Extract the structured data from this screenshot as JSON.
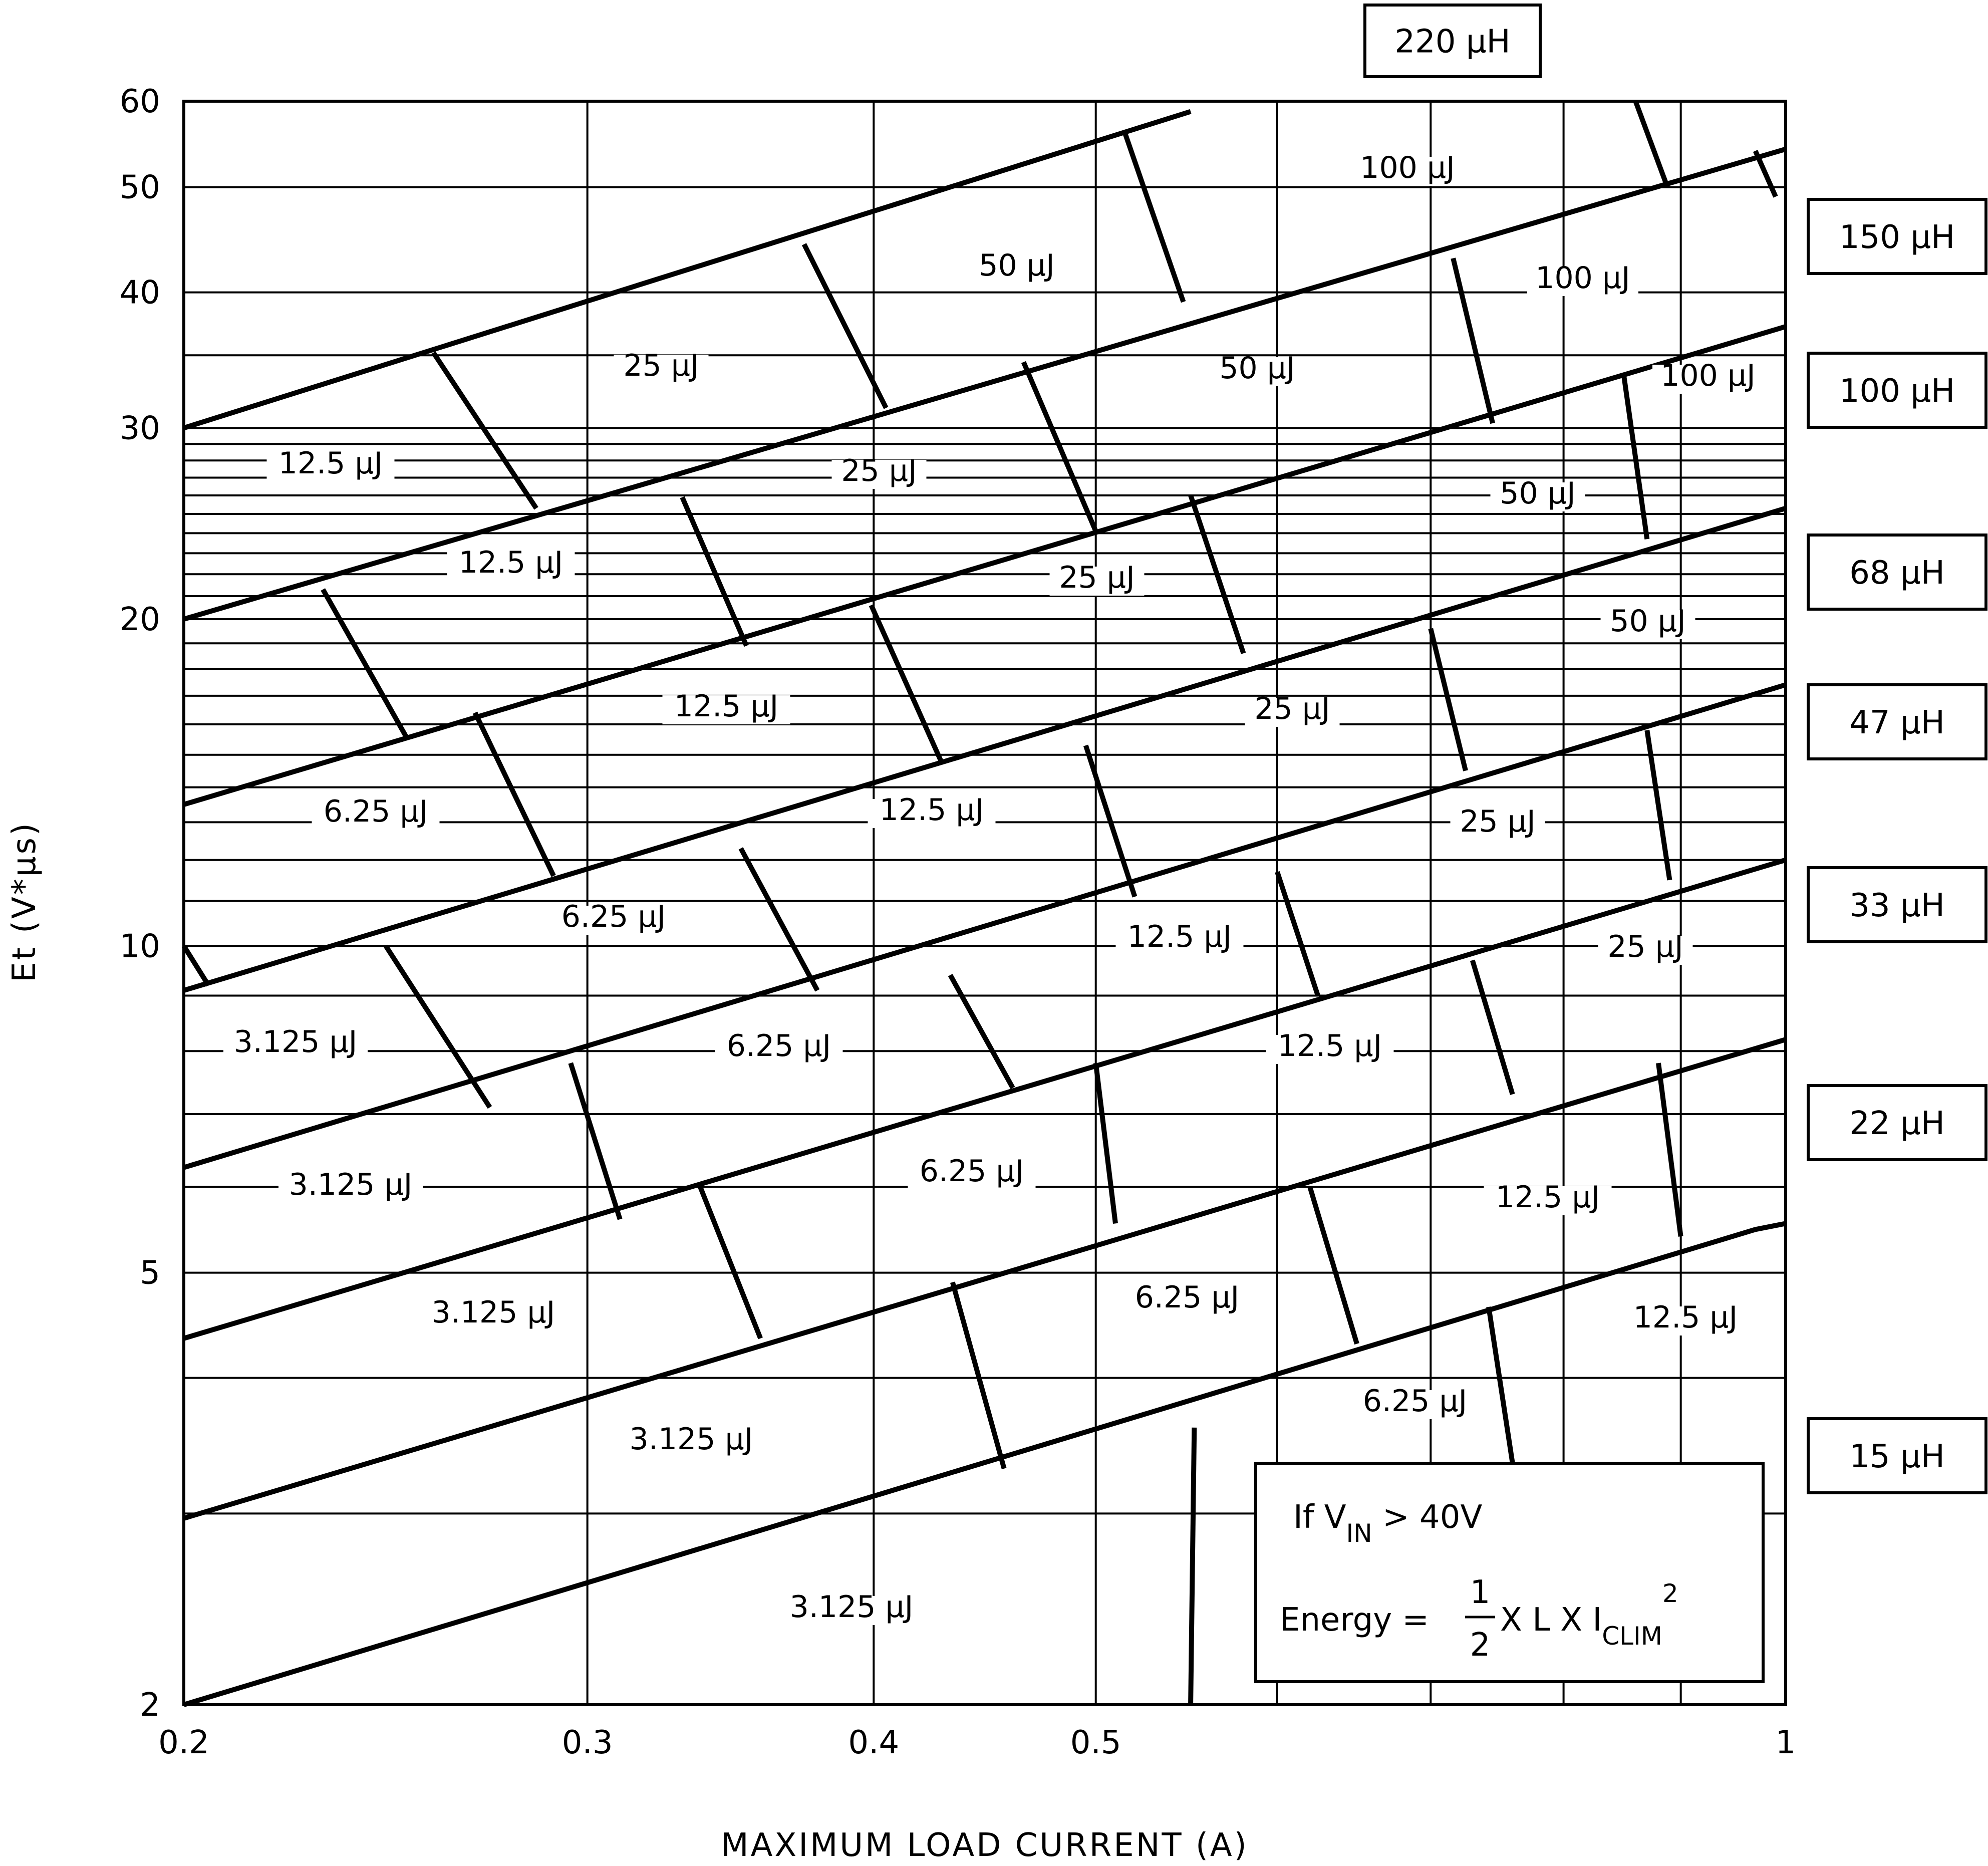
{
  "chart_data": {
    "type": "line",
    "title": "",
    "xlabel": "MAXIMUM LOAD CURRENT (A)",
    "ylabel": "Et (V*μs)",
    "x_scale": "log",
    "y_scale": "log",
    "xlim": [
      0.2,
      1
    ],
    "ylim": [
      2,
      60
    ],
    "grid": true,
    "x_ticks": [
      {
        "value": 0.2,
        "label": "0.2"
      },
      {
        "value": 0.3,
        "label": "0.3"
      },
      {
        "value": 0.4,
        "label": "0.4"
      },
      {
        "value": 0.5,
        "label": "0.5"
      },
      {
        "value": 1,
        "label": "1"
      }
    ],
    "x_minor_grid": [
      0.3,
      0.4,
      0.5,
      0.6,
      0.7,
      0.8,
      0.9
    ],
    "y_ticks": [
      {
        "value": 2,
        "label": "2"
      },
      {
        "value": 5,
        "label": "5"
      },
      {
        "value": 10,
        "label": "10"
      },
      {
        "value": 20,
        "label": "20"
      },
      {
        "value": 30,
        "label": "30"
      },
      {
        "value": 40,
        "label": "40"
      },
      {
        "value": 50,
        "label": "50"
      },
      {
        "value": 60,
        "label": "60"
      }
    ],
    "y_minor_grid": [
      3,
      4,
      6,
      7,
      8,
      9,
      11,
      12,
      13,
      14,
      15,
      16,
      17,
      18,
      19,
      21,
      22,
      23,
      24,
      25,
      26,
      27,
      28,
      29,
      35
    ],
    "inductor_lines": [
      {
        "label": "220 μH",
        "points": [
          [
            0.2,
            30
          ],
          [
            0.55,
            58.7
          ]
        ]
      },
      {
        "label": "150 μH",
        "points": [
          [
            0.2,
            20
          ],
          [
            1.0,
            54.2
          ]
        ]
      },
      {
        "label": "100 μH",
        "points": [
          [
            0.2,
            13.5
          ],
          [
            1.0,
            37.2
          ]
        ]
      },
      {
        "label": "68 μH",
        "points": [
          [
            0.2,
            9.1
          ],
          [
            1.0,
            25.3
          ]
        ]
      },
      {
        "label": "47 μH",
        "points": [
          [
            0.2,
            6.25
          ],
          [
            1.0,
            17.4
          ]
        ]
      },
      {
        "label": "33 μH",
        "points": [
          [
            0.2,
            4.35
          ],
          [
            1.0,
            12.0
          ]
        ]
      },
      {
        "label": "22 μH",
        "points": [
          [
            0.2,
            2.97
          ],
          [
            1.0,
            8.2
          ]
        ]
      },
      {
        "label": "15 μH",
        "points": [
          [
            0.2,
            2.0
          ],
          [
            0.97,
            5.48
          ],
          [
            1.0,
            5.55
          ]
        ]
      }
    ],
    "energy_lines": [
      {
        "points": [
          [
            0.2,
            10.0
          ],
          [
            0.205,
            9.2
          ]
        ]
      },
      {
        "points": [
          [
            0.245,
            10.0
          ],
          [
            0.272,
            7.1
          ]
        ]
      },
      {
        "points": [
          [
            0.257,
            35.2
          ],
          [
            0.285,
            25.3
          ]
        ]
      },
      {
        "points": [
          [
            0.23,
            21.3
          ],
          [
            0.25,
            15.6
          ]
        ]
      },
      {
        "points": [
          [
            0.268,
            16.4
          ],
          [
            0.29,
            11.6
          ]
        ]
      },
      {
        "points": [
          [
            0.295,
            7.8
          ],
          [
            0.31,
            5.6
          ]
        ]
      },
      {
        "points": [
          [
            0.33,
            25.9
          ],
          [
            0.352,
            18.9
          ]
        ]
      },
      {
        "points": [
          [
            0.35,
            12.3
          ],
          [
            0.378,
            9.1
          ]
        ]
      },
      {
        "points": [
          [
            0.336,
            6.0
          ],
          [
            0.357,
            4.35
          ]
        ]
      },
      {
        "points": [
          [
            0.373,
            44.3
          ],
          [
            0.405,
            31.3
          ]
        ]
      },
      {
        "points": [
          [
            0.399,
            20.6
          ],
          [
            0.428,
            14.8
          ]
        ]
      },
      {
        "points": [
          [
            0.432,
            9.4
          ],
          [
            0.46,
            7.4
          ]
        ]
      },
      {
        "points": [
          [
            0.433,
            4.9
          ],
          [
            0.456,
            3.3
          ]
        ]
      },
      {
        "points": [
          [
            0.465,
            34.5
          ],
          [
            0.5,
            24.1
          ]
        ]
      },
      {
        "points": [
          [
            0.495,
            15.3
          ],
          [
            0.52,
            11.1
          ]
        ]
      },
      {
        "points": [
          [
            0.5,
            7.8
          ],
          [
            0.51,
            5.55
          ]
        ]
      },
      {
        "points": [
          [
            0.515,
            56.0
          ],
          [
            0.546,
            39.2
          ]
        ]
      },
      {
        "points": [
          [
            0.552,
            3.6
          ],
          [
            0.55,
            2.0
          ]
        ]
      },
      {
        "points": [
          [
            0.55,
            26.0
          ],
          [
            0.58,
            18.6
          ]
        ]
      },
      {
        "points": [
          [
            0.6,
            11.7
          ],
          [
            0.625,
            9.0
          ]
        ]
      },
      {
        "points": [
          [
            0.62,
            6.0
          ],
          [
            0.65,
            4.3
          ]
        ]
      },
      {
        "points": [
          [
            0.716,
            43.0
          ],
          [
            0.745,
            30.3
          ]
        ]
      },
      {
        "points": [
          [
            0.7,
            19.6
          ],
          [
            0.725,
            14.5
          ]
        ]
      },
      {
        "points": [
          [
            0.73,
            9.7
          ],
          [
            0.76,
            7.3
          ]
        ]
      },
      {
        "points": [
          [
            0.742,
            4.65
          ],
          [
            0.765,
            3.05
          ]
        ]
      },
      {
        "points": [
          [
            0.85,
            33.5
          ],
          [
            0.87,
            23.7
          ]
        ]
      },
      {
        "points": [
          [
            0.87,
            15.8
          ],
          [
            0.89,
            11.5
          ]
        ]
      },
      {
        "points": [
          [
            0.88,
            7.8
          ],
          [
            0.9,
            5.4
          ]
        ]
      },
      {
        "points": [
          [
            0.86,
            60.0
          ],
          [
            0.888,
            50.0
          ]
        ]
      },
      {
        "points": [
          [
            0.97,
            54.0
          ],
          [
            0.99,
            49.0
          ]
        ]
      }
    ],
    "energy_labels": [
      {
        "text": "100 μJ"
      },
      {
        "text": "50 μJ"
      },
      {
        "text": "100 μJ"
      },
      {
        "text": "25 μJ"
      },
      {
        "text": "50 μJ"
      },
      {
        "text": "100 μJ"
      },
      {
        "text": "12.5 μJ"
      },
      {
        "text": "25 μJ"
      },
      {
        "text": "50 μJ"
      },
      {
        "text": "12.5 μJ"
      },
      {
        "text": "25 μJ"
      },
      {
        "text": "50 μJ"
      },
      {
        "text": "12.5 μJ"
      },
      {
        "text": "25 μJ"
      },
      {
        "text": "6.25 μJ"
      },
      {
        "text": "12.5 μJ"
      },
      {
        "text": "25 μJ"
      },
      {
        "text": "6.25 μJ"
      },
      {
        "text": "12.5 μJ"
      },
      {
        "text": "25 μJ"
      },
      {
        "text": "3.125 μJ"
      },
      {
        "text": "6.25 μJ"
      },
      {
        "text": "12.5 μJ"
      },
      {
        "text": "3.125 μJ"
      },
      {
        "text": "6.25 μJ"
      },
      {
        "text": "12.5 μJ"
      },
      {
        "text": "3.125 μJ"
      },
      {
        "text": "6.25 μJ"
      },
      {
        "text": "12.5 μJ"
      },
      {
        "text": "3.125 μJ"
      },
      {
        "text": "6.25 μJ"
      },
      {
        "text": "3.125 μJ"
      }
    ],
    "inductor_labels": [
      "220 μH",
      "150 μH",
      "100 μH",
      "68 μH",
      "47 μH",
      "33 μH",
      "22 μH",
      "15 μH"
    ],
    "note": {
      "line1_prefix": "If V",
      "line1_sub": "IN",
      "line1_suffix": " > 40V",
      "line2_prefix": "Energy = ",
      "frac_num": "1",
      "frac_den": "2",
      "line2_mid": " X L X I",
      "line2_sub": "CLIM",
      "line2_sup": "2"
    }
  }
}
